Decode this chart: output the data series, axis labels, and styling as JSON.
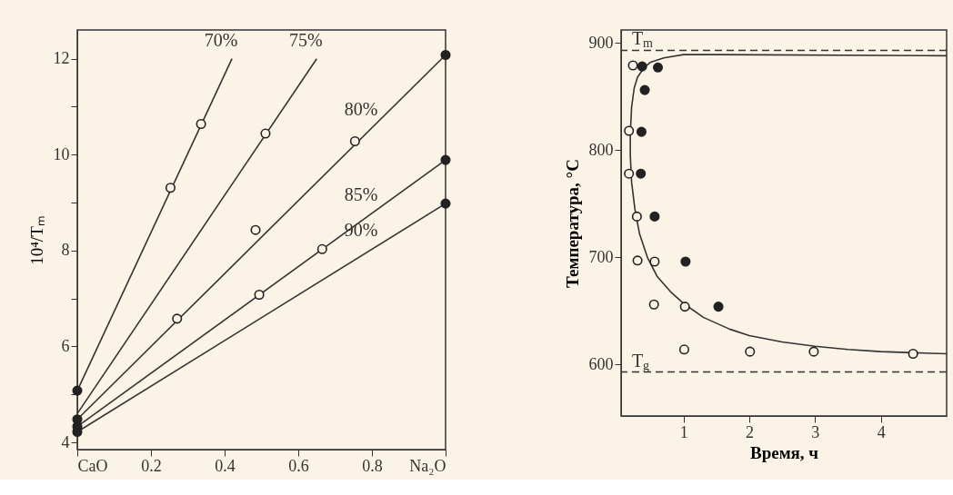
{
  "chart_data": [
    {
      "type": "line",
      "ylabel": "10⁴/Tₘ",
      "xlim": [
        0,
        1
      ],
      "ylim": [
        3.85,
        12.6
      ],
      "xticks": [
        {
          "value": 0,
          "label": "CaO"
        },
        0.2,
        0.4,
        0.6,
        0.8,
        {
          "value": 1,
          "label": "Na₂O"
        }
      ],
      "yticks": [
        4,
        {
          "value": 5,
          "label": null
        },
        6,
        {
          "value": 7,
          "label": null
        },
        8,
        {
          "value": 9,
          "label": null
        },
        10,
        {
          "value": 11,
          "label": null
        },
        12
      ],
      "grid": false,
      "legend": false,
      "series": [
        {
          "name": "70%",
          "color": "#333333",
          "marker": "none",
          "x": [
            0,
            0.42
          ],
          "values": [
            5.08,
            12.0
          ]
        },
        {
          "name": "75%",
          "color": "#333333",
          "marker": "none",
          "x": [
            0,
            0.65
          ],
          "values": [
            4.6,
            12.0
          ]
        },
        {
          "name": "80%",
          "color": "#333333",
          "marker": "none",
          "x": [
            0,
            1
          ],
          "values": [
            4.48,
            12.08
          ]
        },
        {
          "name": "85%",
          "color": "#333333",
          "marker": "none",
          "x": [
            0,
            1
          ],
          "values": [
            4.33,
            9.89
          ]
        },
        {
          "name": "90%",
          "color": "#333333",
          "marker": "none",
          "x": [
            0,
            1
          ],
          "values": [
            4.22,
            8.98
          ]
        },
        {
          "type": "scatter",
          "color": "#fbf4e6",
          "marker": "circle",
          "x": [
            0.253,
            0.336,
            0.511,
            0.271,
            0.484,
            0.754,
            0.494,
            0.665
          ],
          "values": [
            9.31,
            10.64,
            10.44,
            6.58,
            8.43,
            10.28,
            7.08,
            8.03
          ]
        },
        {
          "type": "scatter",
          "color": "#222222",
          "marker": "circle",
          "x": [
            0,
            0,
            0,
            0,
            1,
            1,
            1
          ],
          "values": [
            5.08,
            4.48,
            4.33,
            4.22,
            12.08,
            9.89,
            8.98
          ]
        }
      ]
    },
    {
      "type": "line",
      "xlabel": "Время, ч",
      "ylabel": "Температура, °C",
      "xlim": [
        0.05,
        5.0
      ],
      "ylim": [
        552,
        912
      ],
      "xticks": [
        1,
        2,
        3,
        4
      ],
      "yticks": [
        600,
        700,
        800,
        900
      ],
      "grid": false,
      "legend": false,
      "ref_lines": [
        {
          "axis": "y",
          "value": 893,
          "label": "T$_{m}$",
          "line_style": "dashed",
          "color": "#333333"
        },
        {
          "axis": "y",
          "value": 593,
          "label": "T$_{g}$",
          "line_style": "dashed",
          "color": "#333333"
        }
      ],
      "series": [
        {
          "color": "#333333",
          "marker": "none",
          "x": [
            5.0,
            1.5,
            1.0,
            0.7,
            0.5,
            0.4,
            0.3,
            0.25,
            0.21,
            0.19,
            0.19,
            0.21,
            0.26,
            0.33,
            0.45,
            0.6,
            0.8,
            1.0,
            1.3,
            1.7,
            2.0,
            2.5,
            3.0,
            3.5,
            4.0,
            4.5,
            5.0
          ],
          "values": [
            888,
            889,
            889,
            886,
            882,
            877,
            868,
            858,
            840,
            815,
            795,
            770,
            745,
            722,
            700,
            682,
            668,
            657,
            644,
            633,
            627,
            621,
            617,
            614,
            612,
            611,
            610
          ]
        },
        {
          "type": "scatter",
          "color": "#fbf4e6",
          "marker": "circle",
          "x": [
            0.23,
            0.17,
            0.17,
            0.29,
            0.3,
            0.56,
            0.55,
            1.02,
            1.01,
            2.01,
            2.98,
            4.49
          ],
          "values": [
            879,
            818,
            778,
            738,
            697,
            696,
            656,
            654,
            614,
            612,
            612,
            610
          ]
        },
        {
          "type": "scatter",
          "color": "#222222",
          "marker": "circle",
          "x": [
            0.37,
            0.61,
            0.41,
            0.36,
            0.35,
            0.56,
            1.03,
            1.53
          ],
          "values": [
            878,
            877,
            856,
            817,
            778,
            738,
            696,
            654
          ]
        }
      ]
    }
  ]
}
